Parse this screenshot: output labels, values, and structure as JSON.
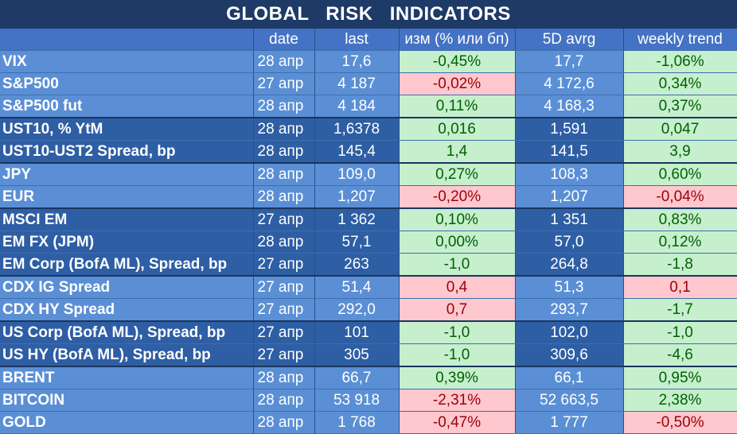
{
  "title": "GLOBAL   RISK   INDICATORS",
  "headers": [
    "",
    "date",
    "last",
    "изм (% или бп)",
    "5D avrg",
    "weekly trend"
  ],
  "colors": {
    "positive_bg": "#c6efce",
    "positive_fg": "#006100",
    "negative_bg": "#ffc7ce",
    "negative_fg": "#9c0006",
    "row_light": "#5b8fd5",
    "row_dark": "#2e5ea4",
    "header": "#4472c4"
  },
  "rows": [
    {
      "name": "VIX",
      "date": "28 апр",
      "last": "17,6",
      "chg": "-0,45%",
      "chg_sign": "pos",
      "avg": "17,7",
      "trend": "-1,06%",
      "trend_sign": "pos",
      "shade": "light",
      "group_end": false
    },
    {
      "name": "S&P500",
      "date": "27 апр",
      "last": "4 187",
      "chg": "-0,02%",
      "chg_sign": "neg",
      "avg": "4 172,6",
      "trend": "0,34%",
      "trend_sign": "pos",
      "shade": "light",
      "group_end": false
    },
    {
      "name": "S&P500 fut",
      "date": "28 апр",
      "last": "4 184",
      "chg": "0,11%",
      "chg_sign": "pos",
      "avg": "4 168,3",
      "trend": "0,37%",
      "trend_sign": "pos",
      "shade": "light",
      "group_end": true
    },
    {
      "name": "UST10, % YtM",
      "date": "28 апр",
      "last": "1,6378",
      "chg": "0,016",
      "chg_sign": "pos",
      "avg": "1,591",
      "trend": "0,047",
      "trend_sign": "pos",
      "shade": "dark",
      "group_end": false
    },
    {
      "name": "UST10-UST2 Spread, bp",
      "date": "28 апр",
      "last": "145,4",
      "chg": "1,4",
      "chg_sign": "pos",
      "avg": "141,5",
      "trend": "3,9",
      "trend_sign": "pos",
      "shade": "dark",
      "group_end": true
    },
    {
      "name": "JPY",
      "date": "28 апр",
      "last": "109,0",
      "chg": "0,27%",
      "chg_sign": "pos",
      "avg": "108,3",
      "trend": "0,60%",
      "trend_sign": "pos",
      "shade": "light",
      "group_end": false
    },
    {
      "name": "EUR",
      "date": "28 апр",
      "last": "1,207",
      "chg": "-0,20%",
      "chg_sign": "neg",
      "avg": "1,207",
      "trend": "-0,04%",
      "trend_sign": "neg",
      "shade": "light",
      "group_end": true
    },
    {
      "name": "MSCI EM",
      "date": "27 апр",
      "last": "1 362",
      "chg": "0,10%",
      "chg_sign": "pos",
      "avg": "1 351",
      "trend": "0,83%",
      "trend_sign": "pos",
      "shade": "dark",
      "group_end": false
    },
    {
      "name": "EM FX (JPM)",
      "date": "28 апр",
      "last": "57,1",
      "chg": "0,00%",
      "chg_sign": "pos",
      "avg": "57,0",
      "trend": "0,12%",
      "trend_sign": "pos",
      "shade": "dark",
      "group_end": false
    },
    {
      "name": "EM Corp (BofA ML), Spread, bp",
      "date": "27 апр",
      "last": "263",
      "chg": "-1,0",
      "chg_sign": "pos",
      "avg": "264,8",
      "trend": "-1,8",
      "trend_sign": "pos",
      "shade": "dark",
      "group_end": true
    },
    {
      "name": "CDX IG Spread",
      "date": "27 апр",
      "last": "51,4",
      "chg": "0,4",
      "chg_sign": "neg",
      "avg": "51,3",
      "trend": "0,1",
      "trend_sign": "neg",
      "shade": "light",
      "group_end": false
    },
    {
      "name": "CDX HY Spread",
      "date": "27 апр",
      "last": "292,0",
      "chg": "0,7",
      "chg_sign": "neg",
      "avg": "293,7",
      "trend": "-1,7",
      "trend_sign": "pos",
      "shade": "light",
      "group_end": true
    },
    {
      "name": "US Corp (BofA ML), Spread, bp",
      "date": "27 апр",
      "last": "101",
      "chg": "-1,0",
      "chg_sign": "pos",
      "avg": "102,0",
      "trend": "-1,0",
      "trend_sign": "pos",
      "shade": "dark",
      "group_end": false
    },
    {
      "name": "US HY (BofA ML), Spread, bp",
      "date": "27 апр",
      "last": "305",
      "chg": "-1,0",
      "chg_sign": "pos",
      "avg": "309,6",
      "trend": "-4,6",
      "trend_sign": "pos",
      "shade": "dark",
      "group_end": true
    },
    {
      "name": "BRENT",
      "date": "28 апр",
      "last": "66,7",
      "chg": "0,39%",
      "chg_sign": "pos",
      "avg": "66,1",
      "trend": "0,95%",
      "trend_sign": "pos",
      "shade": "light",
      "group_end": false
    },
    {
      "name": "BITCOIN",
      "date": "28 апр",
      "last": "53 918",
      "chg": "-2,31%",
      "chg_sign": "neg",
      "avg": "52 663,5",
      "trend": "2,38%",
      "trend_sign": "pos",
      "shade": "light",
      "group_end": false
    },
    {
      "name": "GOLD",
      "date": "28 апр",
      "last": "1 768",
      "chg": "-0,47%",
      "chg_sign": "neg",
      "avg": "1 777",
      "trend": "-0,50%",
      "trend_sign": "neg",
      "shade": "light",
      "group_end": false
    }
  ]
}
